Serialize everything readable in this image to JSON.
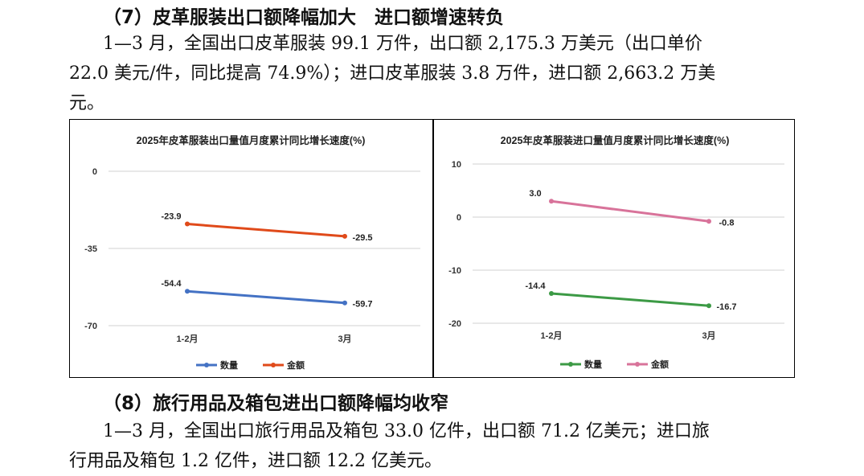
{
  "section7": {
    "heading": "（7）皮革服装出口额降幅加大　进口额增速转负",
    "para_line1": "1—3 月，全国出口皮革服装 99.1 万件，出口额 2,175.3 万美元（出口单价",
    "para_line2": "22.0 美元/件，同比提高 74.9%）；进口皮革服装 3.8 万件，进口额 2,663.2 万美",
    "para_line3": "元。"
  },
  "section8": {
    "heading": "（8）旅行用品及箱包进出口额降幅均收窄",
    "para_line1": "1—3 月，全国出口旅行用品及箱包 33.0 亿件，出口额 71.2 亿美元；进口旅",
    "para_line2": "行用品及箱包 1.2 亿件，进口额 12.2 亿美元。"
  },
  "colors": {
    "quantity_left": "#4472C4",
    "value_left": "#E04A1A",
    "quantity_right": "#3C9A45",
    "value_right": "#D8739A",
    "grid": "#d9d9d9"
  },
  "chart_data": [
    {
      "type": "line",
      "title": "2025年皮革服装出口量值月度累计同比增长速度(%)",
      "categories": [
        "1-2月",
        "3月"
      ],
      "ylim": [
        -70,
        0
      ],
      "yticks": [
        "0",
        "-35",
        "-70"
      ],
      "grid": true,
      "legend_position": "bottom",
      "series": [
        {
          "name": "数量",
          "values": [
            -54.4,
            -59.7
          ],
          "labels": [
            "-54.4",
            "-59.7"
          ]
        },
        {
          "name": "金额",
          "values": [
            -23.9,
            -29.5
          ],
          "labels": [
            "-23.9",
            "-29.5"
          ]
        }
      ]
    },
    {
      "type": "line",
      "title": "2025年皮革服装进口量值月度累计同比增长速度(%)",
      "categories": [
        "1-2月",
        "3月"
      ],
      "ylim": [
        -20,
        10
      ],
      "yticks": [
        "10",
        "0",
        "-10",
        "-20"
      ],
      "grid": true,
      "legend_position": "bottom",
      "series": [
        {
          "name": "数量",
          "values": [
            -14.4,
            -16.7
          ],
          "labels": [
            "-14.4",
            "-16.7"
          ]
        },
        {
          "name": "金额",
          "values": [
            3.0,
            -0.8
          ],
          "labels": [
            "3.0",
            "-0.8"
          ]
        }
      ]
    }
  ]
}
